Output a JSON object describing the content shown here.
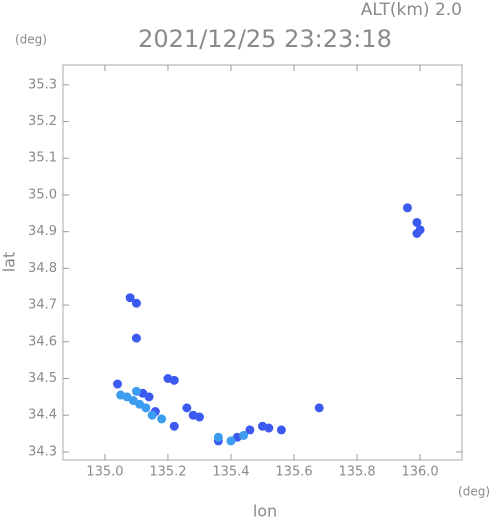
{
  "chart_data": {
    "type": "scatter",
    "title": "2021/12/25 23:23:18",
    "subtitle": "ALT(km) 2.0",
    "y_unit": "(deg)",
    "x_unit": "(deg)",
    "xlabel": "lon",
    "ylabel": "lat",
    "xlim": [
      134.867,
      136.133
    ],
    "ylim": [
      34.278,
      35.354
    ],
    "xticks": [
      {
        "value": 135.0,
        "label": "135.0"
      },
      135.2,
      135.4,
      135.6,
      135.8,
      {
        "value": 136.0,
        "label": "136.0"
      }
    ],
    "yticks": [
      34.3,
      34.4,
      34.5,
      34.6,
      34.7,
      34.8,
      34.9,
      {
        "value": 35.0,
        "label": "35.0"
      },
      35.1,
      35.2,
      35.3
    ],
    "series": [
      {
        "color": "#3c5af0",
        "x": [
          135.96,
          135.99,
          136.0,
          135.99,
          135.08,
          135.1,
          135.1,
          135.04,
          135.2,
          135.22,
          135.68,
          135.26,
          135.28,
          135.3,
          135.14,
          135.5,
          135.52,
          135.46,
          135.56,
          135.22,
          135.42,
          135.36,
          135.12,
          135.16
        ],
        "y": [
          34.965,
          34.925,
          34.905,
          34.895,
          34.72,
          34.705,
          34.61,
          34.485,
          34.5,
          34.495,
          34.42,
          34.42,
          34.4,
          34.395,
          34.45,
          34.37,
          34.365,
          34.36,
          34.36,
          34.37,
          34.34,
          34.33,
          34.46,
          34.41
        ]
      },
      {
        "color": "#3c9cf0",
        "x": [
          135.07,
          135.09,
          135.11,
          135.13,
          135.15,
          135.18,
          135.36,
          135.4,
          135.44,
          135.1,
          135.05
        ],
        "y": [
          34.45,
          34.44,
          34.43,
          34.42,
          34.4,
          34.39,
          34.34,
          34.33,
          34.345,
          34.465,
          34.455
        ]
      }
    ]
  }
}
